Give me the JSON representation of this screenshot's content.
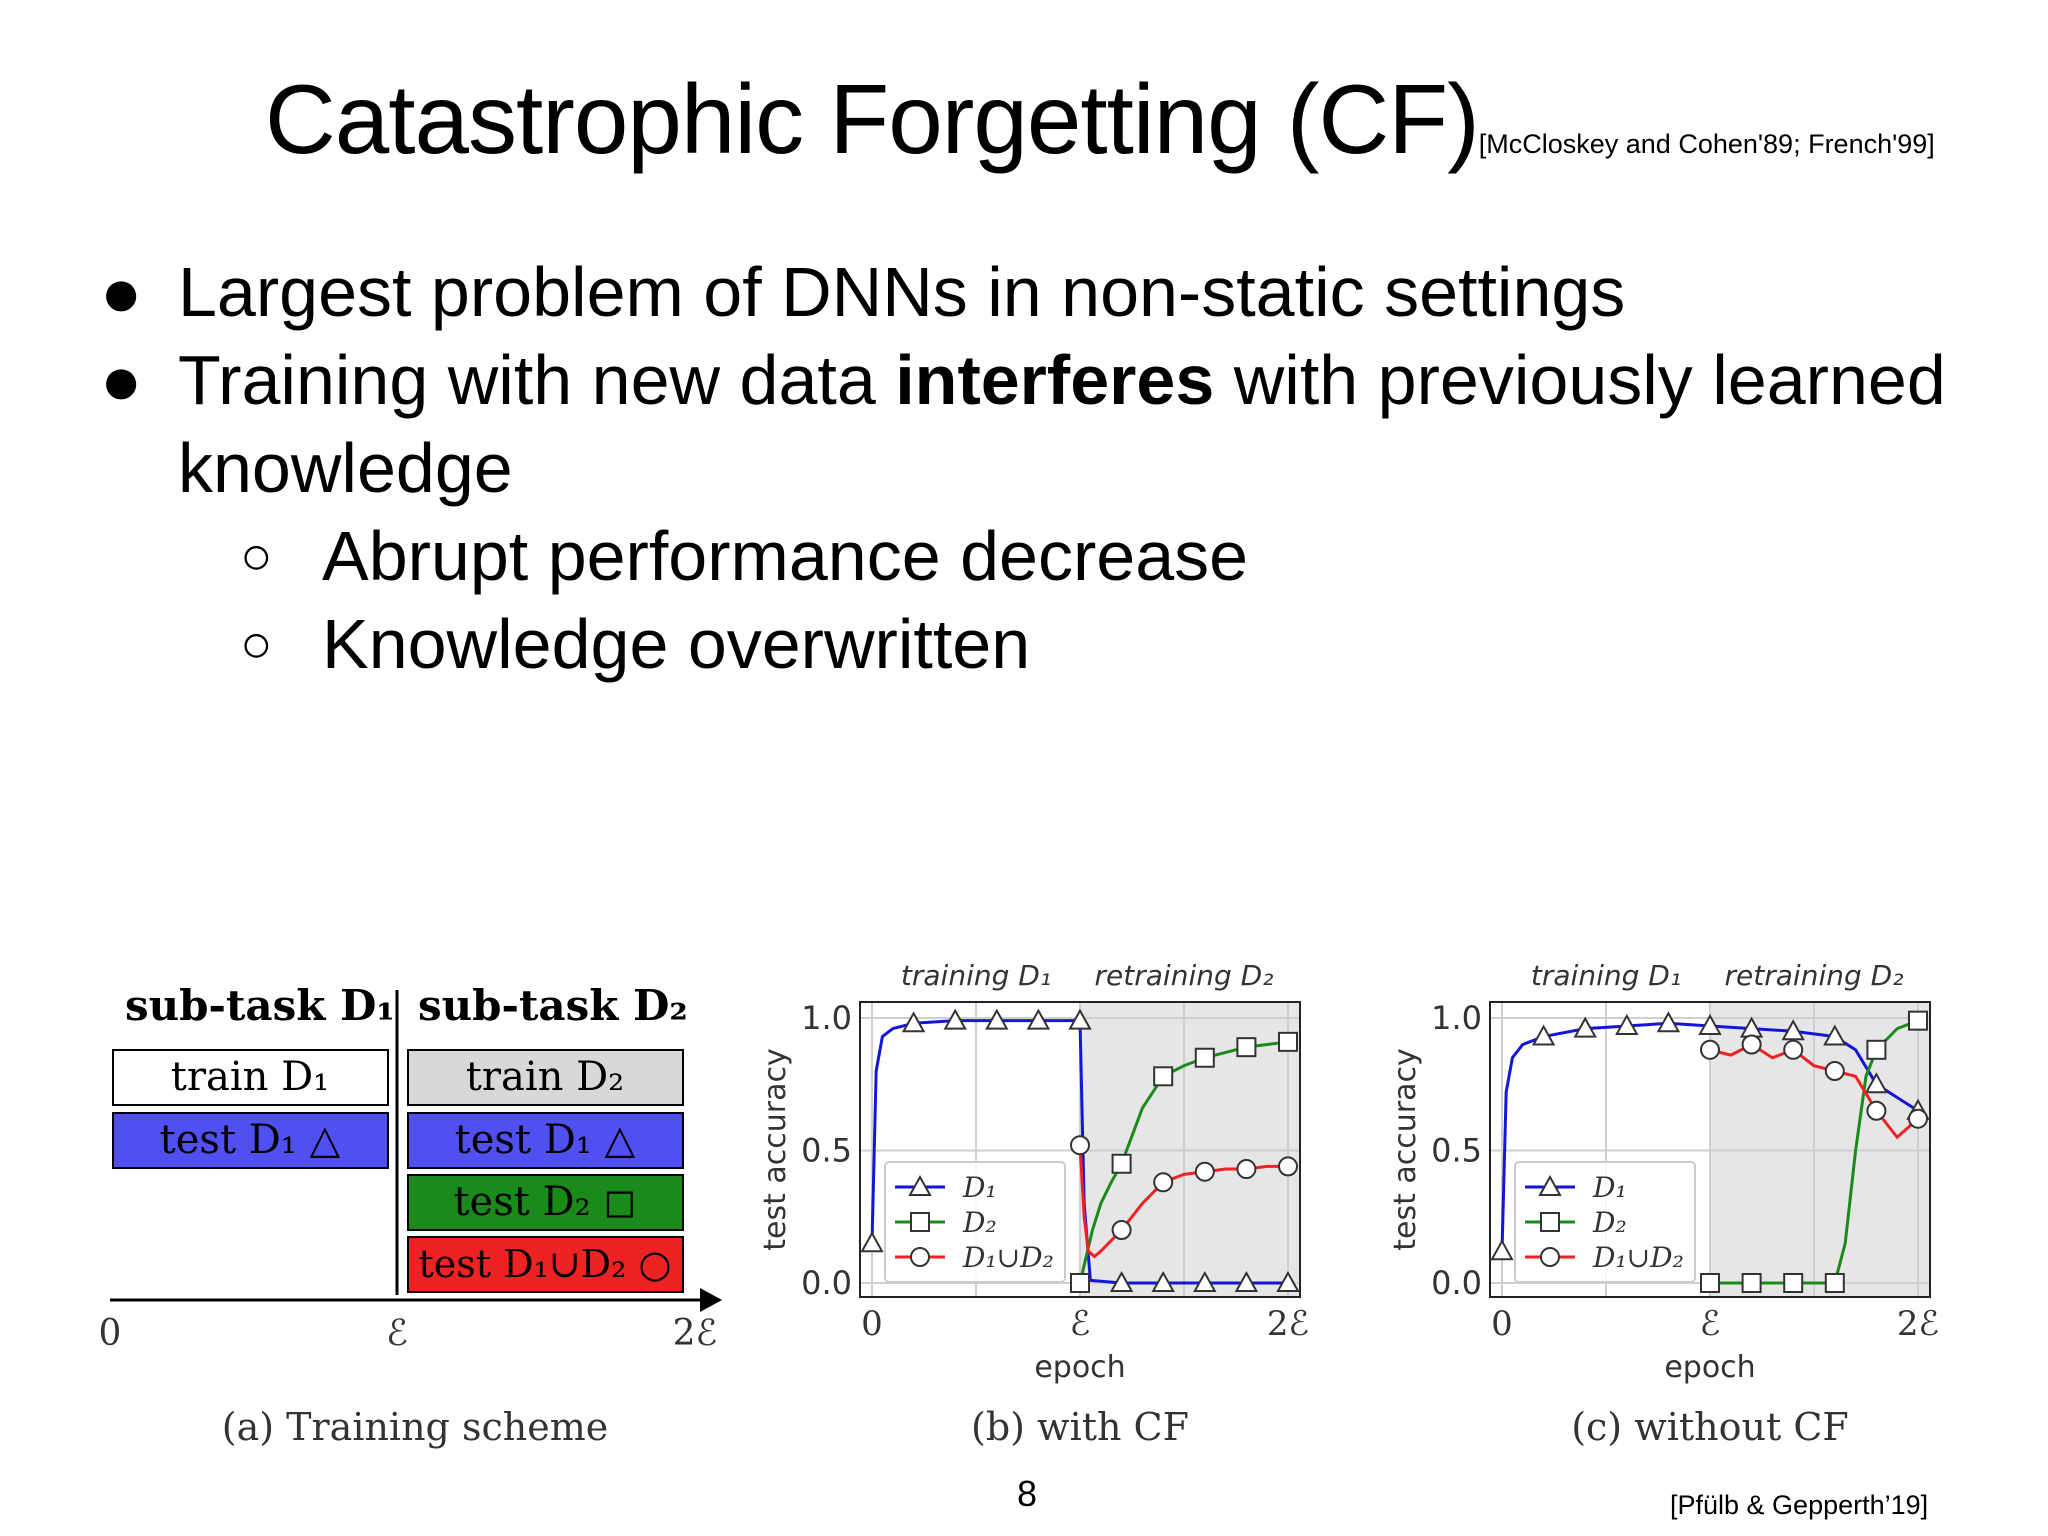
{
  "slide": {
    "title": "Catastrophic Forgetting (CF)",
    "title_citation": "[McCloskey and Cohen'89; French'99]",
    "bullets": [
      {
        "text_before": "Largest problem of DNNs in non-static settings"
      },
      {
        "text_before": "Training with new data ",
        "bold": "interferes",
        "text_after": " with previously learned",
        "line2": "knowledge"
      }
    ],
    "sub_bullets": [
      "Abrupt performance decrease",
      "Knowledge overwritten"
    ],
    "page_number": "8",
    "reference": "[Pfülb & Gepperth’19]"
  },
  "figure": {
    "scheme": {
      "caption": "(a) Training scheme",
      "headers": [
        "sub-task D₁",
        "sub-task D₂"
      ],
      "left_boxes": [
        {
          "label": "train D₁",
          "color": "#ffffff"
        },
        {
          "label": "test D₁ △",
          "color": "#5050f0"
        }
      ],
      "right_boxes": [
        {
          "label": "train D₂",
          "color": "#d8d8d8"
        },
        {
          "label": "test D₁ △",
          "color": "#5050f0"
        },
        {
          "label": "test D₂ ◻",
          "color": "#1a8a1a"
        },
        {
          "label": "test D₁∪D₂ ○",
          "color": "#ee2222"
        }
      ],
      "axis_ticks": [
        "0",
        "ℰ",
        "2ℰ"
      ]
    },
    "panel_labels": {
      "phase1": "training D₁",
      "phase2": "retraining D₂",
      "ylabel": "test accuracy",
      "xlabel": "epoch",
      "yticks": [
        "0.0",
        "0.5",
        "1.0"
      ],
      "xticks": [
        "0",
        "ℰ",
        "2ℰ"
      ],
      "legend": [
        "D₁",
        "D₂",
        "D₁∪D₂"
      ]
    }
  },
  "chart_data": [
    {
      "type": "line",
      "title": "(b) with CF",
      "xlabel": "epoch",
      "ylabel": "test accuracy",
      "xlim": [
        0,
        2
      ],
      "ylim": [
        0,
        1
      ],
      "retrain_start": 1,
      "series": [
        {
          "name": "D₁",
          "color": "#1515d8",
          "marker": "triangle",
          "x": [
            0,
            0.02,
            0.05,
            0.1,
            0.2,
            0.4,
            0.6,
            0.8,
            1.0,
            1.02,
            1.05,
            1.2,
            1.4,
            1.6,
            1.8,
            2.0
          ],
          "y": [
            0.15,
            0.8,
            0.93,
            0.96,
            0.98,
            0.99,
            0.99,
            0.99,
            0.99,
            0.3,
            0.01,
            0.0,
            0.0,
            0.0,
            0.0,
            0.0
          ],
          "marker_x": [
            0,
            0.2,
            0.4,
            0.6,
            0.8,
            1.0,
            1.2,
            1.4,
            1.6,
            1.8,
            2.0
          ]
        },
        {
          "name": "D₂",
          "color": "#1a8a1a",
          "marker": "square",
          "x": [
            1.0,
            1.03,
            1.06,
            1.1,
            1.15,
            1.2,
            1.3,
            1.4,
            1.5,
            1.6,
            1.7,
            1.8,
            1.9,
            2.0
          ],
          "y": [
            0.0,
            0.1,
            0.2,
            0.3,
            0.38,
            0.45,
            0.66,
            0.78,
            0.82,
            0.85,
            0.87,
            0.89,
            0.9,
            0.91
          ],
          "marker_x": [
            1.0,
            1.2,
            1.4,
            1.6,
            1.8,
            2.0
          ]
        },
        {
          "name": "D₁∪D₂",
          "color": "#ee2222",
          "marker": "circle",
          "x": [
            1.0,
            1.02,
            1.04,
            1.07,
            1.1,
            1.2,
            1.3,
            1.4,
            1.5,
            1.6,
            1.7,
            1.8,
            1.9,
            2.0
          ],
          "y": [
            0.52,
            0.25,
            0.12,
            0.1,
            0.12,
            0.2,
            0.3,
            0.38,
            0.41,
            0.42,
            0.43,
            0.43,
            0.44,
            0.44
          ],
          "marker_x": [
            1.0,
            1.2,
            1.4,
            1.6,
            1.8,
            2.0
          ]
        }
      ]
    },
    {
      "type": "line",
      "title": "(c) without CF",
      "xlabel": "epoch",
      "ylabel": "test accuracy",
      "xlim": [
        0,
        2
      ],
      "ylim": [
        0,
        1
      ],
      "retrain_start": 1,
      "series": [
        {
          "name": "D₁",
          "color": "#1515d8",
          "marker": "triangle",
          "x": [
            0,
            0.02,
            0.05,
            0.1,
            0.2,
            0.4,
            0.6,
            0.8,
            1.0,
            1.2,
            1.4,
            1.6,
            1.7,
            1.8,
            1.9,
            2.0
          ],
          "y": [
            0.12,
            0.72,
            0.85,
            0.9,
            0.93,
            0.96,
            0.97,
            0.98,
            0.97,
            0.96,
            0.95,
            0.93,
            0.88,
            0.75,
            0.7,
            0.65
          ],
          "marker_x": [
            0,
            0.2,
            0.4,
            0.6,
            0.8,
            1.0,
            1.2,
            1.4,
            1.6,
            1.8,
            2.0
          ]
        },
        {
          "name": "D₂",
          "color": "#1a8a1a",
          "marker": "square",
          "x": [
            1.0,
            1.2,
            1.4,
            1.5,
            1.6,
            1.65,
            1.7,
            1.75,
            1.8,
            1.9,
            2.0
          ],
          "y": [
            0.0,
            0.0,
            0.0,
            0.0,
            0.0,
            0.15,
            0.5,
            0.78,
            0.88,
            0.96,
            0.99
          ],
          "marker_x": [
            1.0,
            1.2,
            1.4,
            1.6,
            1.8,
            2.0
          ]
        },
        {
          "name": "D₁∪D₂",
          "color": "#ee2222",
          "marker": "circle",
          "x": [
            1.0,
            1.1,
            1.2,
            1.3,
            1.4,
            1.5,
            1.6,
            1.7,
            1.8,
            1.9,
            2.0
          ],
          "y": [
            0.88,
            0.86,
            0.9,
            0.85,
            0.88,
            0.82,
            0.8,
            0.78,
            0.65,
            0.55,
            0.62
          ],
          "marker_x": [
            1.0,
            1.2,
            1.4,
            1.6,
            1.8,
            2.0
          ]
        }
      ]
    }
  ]
}
